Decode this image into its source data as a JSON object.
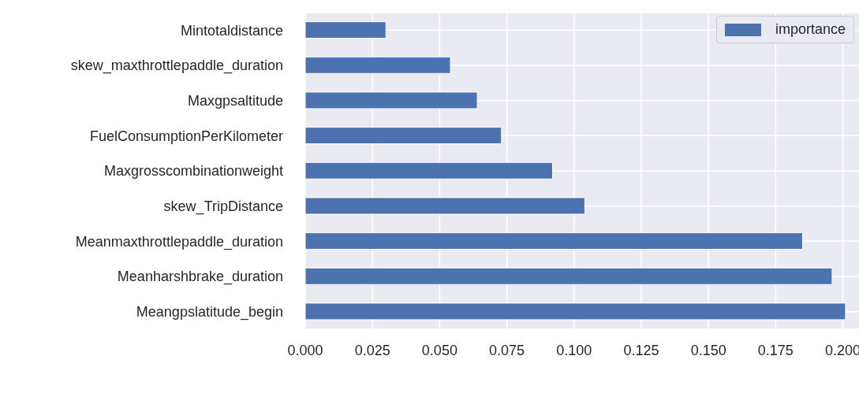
{
  "chart_data": {
    "type": "bar",
    "orientation": "horizontal",
    "categories": [
      "Mintotaldistance",
      "skew_maxthrottlepaddle_duration",
      "Maxgpsaltitude",
      "FuelConsumptionPerKilometer",
      "Maxgrosscombinationweight",
      "skew_TripDistance",
      "Meanmaxthrottlepaddle_duration",
      "Meanharshbrake_duration",
      "Meangpslatitude_begin"
    ],
    "series": [
      {
        "name": "importance",
        "color": "#4c72b0",
        "values": [
          0.03,
          0.054,
          0.064,
          0.073,
          0.092,
          0.104,
          0.185,
          0.196,
          0.201
        ]
      }
    ],
    "xlim": [
      0,
      0.206
    ],
    "xticks": [
      {
        "value": 0,
        "label": "0.000"
      },
      {
        "value": 0.025,
        "label": "0.025"
      },
      {
        "value": 0.05,
        "label": "0.050"
      },
      {
        "value": 0.075,
        "label": "0.075"
      },
      {
        "value": 0.1,
        "label": "0.100"
      },
      {
        "value": 0.125,
        "label": "0.125"
      },
      {
        "value": 0.15,
        "label": "0.150"
      },
      {
        "value": 0.175,
        "label": "0.175"
      },
      {
        "value": 0.2,
        "label": "0.200"
      }
    ],
    "grid": true,
    "legend": "top right"
  }
}
